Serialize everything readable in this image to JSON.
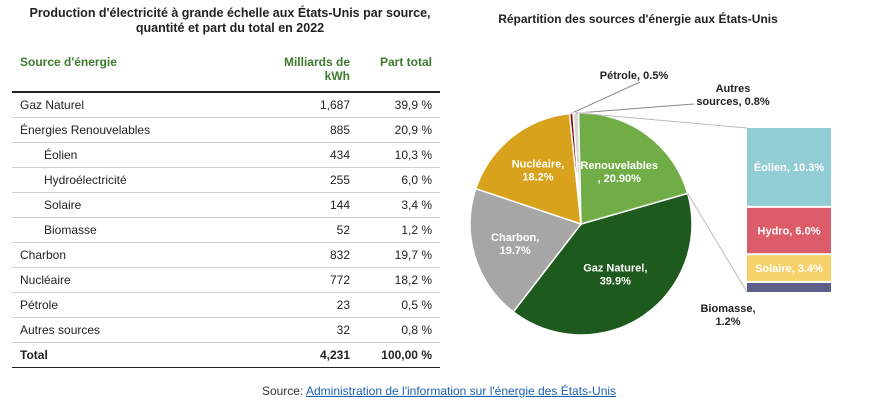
{
  "table": {
    "title_line1": "Production d'électricité à grande échelle aux États-Unis par source,",
    "title_line2": "quantité et part du total en 2022",
    "headers": {
      "source": "Source d'énergie",
      "value_line1": "Milliards de",
      "value_line2": "kWh",
      "share": "Part total"
    },
    "rows": [
      {
        "label": "Gaz Naturel",
        "value": "1,687",
        "share": "39,9 %",
        "sub": false
      },
      {
        "label": "Énergies Renouvelables",
        "value": "885",
        "share": "20,9 %",
        "sub": false
      },
      {
        "label": "Éolien",
        "value": "434",
        "share": "10,3 %",
        "sub": true
      },
      {
        "label": "Hydroélectricité",
        "value": "255",
        "share": "6,0 %",
        "sub": true
      },
      {
        "label": "Solaire",
        "value": "144",
        "share": "3,4 %",
        "sub": true
      },
      {
        "label": "Biomasse",
        "value": "52",
        "share": "1,2 %",
        "sub": true
      },
      {
        "label": "Charbon",
        "value": "832",
        "share": "19,7 %",
        "sub": false
      },
      {
        "label": "Nucléaire",
        "value": "772",
        "share": "18,2 %",
        "sub": false
      },
      {
        "label": "Pétrole",
        "value": "23",
        "share": "0,5 %",
        "sub": false
      },
      {
        "label": "Autres sources",
        "value": "32",
        "share": "0,8 %",
        "sub": false
      }
    ],
    "total": {
      "label": "Total",
      "value": "4,231",
      "share": "100,00 %"
    }
  },
  "chart_data": {
    "type": "pie",
    "title": "Répartition des sources d'énergie aux États-Unis",
    "slices": [
      {
        "name": "Gaz Naturel",
        "value": 39.9,
        "label_line1": "Gaz Naturel,",
        "label_line2": "39.9%",
        "color": "#1e5a1e"
      },
      {
        "name": "Charbon",
        "value": 19.7,
        "label_line1": "Charbon,",
        "label_line2": "19.7%",
        "color": "#a6a6a6"
      },
      {
        "name": "Nucléaire",
        "value": 18.2,
        "label_line1": "Nucléaire,",
        "label_line2": "18.2%",
        "color": "#d9a21c"
      },
      {
        "name": "Pétrole",
        "value": 0.5,
        "label_line1": "Pétrole, 0.5%",
        "label_line2": "",
        "color": "#8b0000"
      },
      {
        "name": "Autres sources",
        "value": 0.8,
        "label_line1": "Autres",
        "label_line2": "sources, 0.8%",
        "color": "#d6d6d6"
      },
      {
        "name": "Renouvelables",
        "value": 20.9,
        "label_line1": "Renouvelables",
        "label_line2": ", 20.90%",
        "color": "#70ad47"
      }
    ],
    "breakdown": {
      "parent": "Renouvelables",
      "items": [
        {
          "name": "Éolien",
          "value": 10.3,
          "label": "Éolien, 10.3%",
          "color": "#92cdd6"
        },
        {
          "name": "Hydro",
          "value": 6.0,
          "label": "Hydro, 6.0%",
          "color": "#dc5c6a"
        },
        {
          "name": "Solaire",
          "value": 3.4,
          "label": "Solaire, 3.4%",
          "color": "#f7d26b"
        },
        {
          "name": "Biomasse",
          "value": 1.2,
          "label_line1": "Biomasse,",
          "label_line2": "1.2%",
          "color": "#5b5f8a"
        }
      ]
    }
  },
  "source": {
    "prefix": "Source: ",
    "link_text": "Administration de l'information sur l'énergie des États-Unis"
  }
}
